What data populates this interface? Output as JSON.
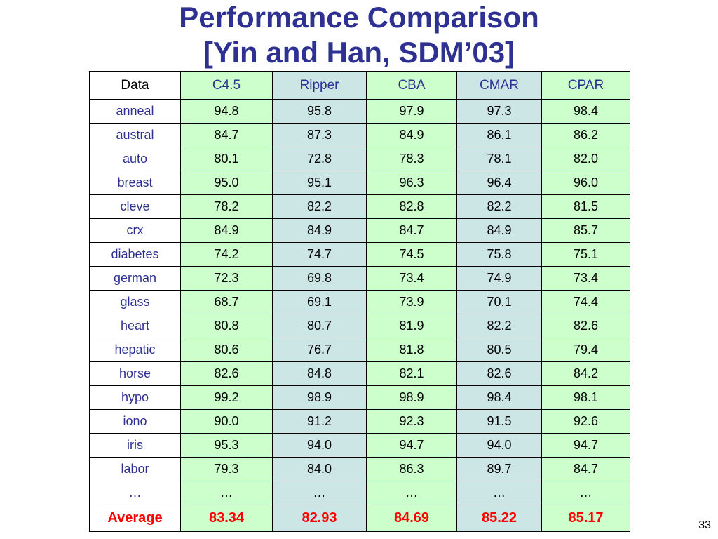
{
  "slide": {
    "title_line1": "Performance Comparison",
    "title_line2": "[Yin and Han, SDM’03]",
    "page_number": "33"
  },
  "table": {
    "columns": [
      "Data",
      "C4.5",
      "Ripper",
      "CBA",
      "CMAR",
      "CPAR"
    ],
    "rows": [
      [
        "anneal",
        "94.8",
        "95.8",
        "97.9",
        "97.3",
        "98.4"
      ],
      [
        "austral",
        "84.7",
        "87.3",
        "84.9",
        "86.1",
        "86.2"
      ],
      [
        "auto",
        "80.1",
        "72.8",
        "78.3",
        "78.1",
        "82.0"
      ],
      [
        "breast",
        "95.0",
        "95.1",
        "96.3",
        "96.4",
        "96.0"
      ],
      [
        "cleve",
        "78.2",
        "82.2",
        "82.8",
        "82.2",
        "81.5"
      ],
      [
        "crx",
        "84.9",
        "84.9",
        "84.7",
        "84.9",
        "85.7"
      ],
      [
        "diabetes",
        "74.2",
        "74.7",
        "74.5",
        "75.8",
        "75.1"
      ],
      [
        "german",
        "72.3",
        "69.8",
        "73.4",
        "74.9",
        "73.4"
      ],
      [
        "glass",
        "68.7",
        "69.1",
        "73.9",
        "70.1",
        "74.4"
      ],
      [
        "heart",
        "80.8",
        "80.7",
        "81.9",
        "82.2",
        "82.6"
      ],
      [
        "hepatic",
        "80.6",
        "76.7",
        "81.8",
        "80.5",
        "79.4"
      ],
      [
        "horse",
        "82.6",
        "84.8",
        "82.1",
        "82.6",
        "84.2"
      ],
      [
        "hypo",
        "99.2",
        "98.9",
        "98.9",
        "98.4",
        "98.1"
      ],
      [
        "iono",
        "90.0",
        "91.2",
        "92.3",
        "91.5",
        "92.6"
      ],
      [
        "iris",
        "95.3",
        "94.0",
        "94.7",
        "94.0",
        "94.7"
      ],
      [
        "labor",
        "79.3",
        "84.0",
        "86.3",
        "89.7",
        "84.7"
      ],
      [
        "…",
        "…",
        "…",
        "…",
        "…",
        "…"
      ]
    ],
    "average": [
      "Average",
      "83.34",
      "82.93",
      "84.69",
      "85.22",
      "85.17"
    ],
    "colors": {
      "title": "#2e3192",
      "label": "#2e3192",
      "average": "#ff0000",
      "green_column": "#ccffcc",
      "blue_column": "#cce6e6"
    }
  }
}
